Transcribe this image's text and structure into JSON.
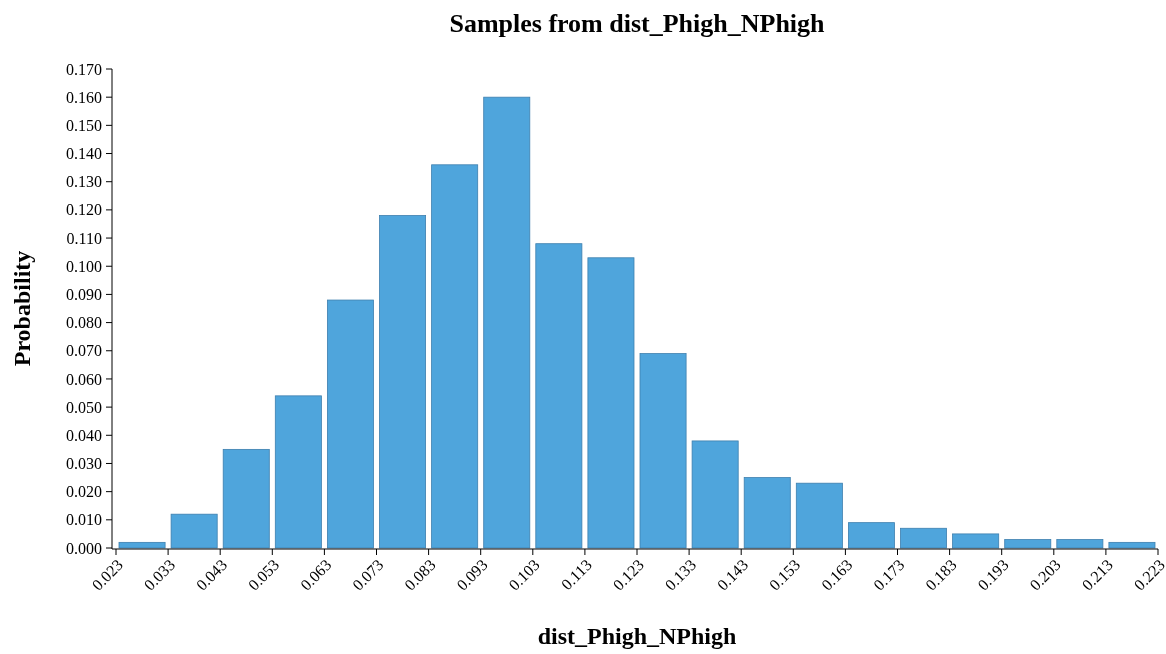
{
  "chart_data": {
    "type": "histogram",
    "title": "Samples from dist_Phigh_NPhigh",
    "xlabel": "dist_Phigh_NPhigh",
    "ylabel": "Probability",
    "color": "#4fa5dc",
    "bins": [
      0.023,
      0.033,
      0.043,
      0.053,
      0.063,
      0.073,
      0.083,
      0.093,
      0.103,
      0.113,
      0.123,
      0.133,
      0.143,
      0.153,
      0.163,
      0.173,
      0.183,
      0.193,
      0.203,
      0.213,
      0.223
    ],
    "values": [
      0.002,
      0.012,
      0.035,
      0.054,
      0.088,
      0.118,
      0.136,
      0.16,
      0.108,
      0.103,
      0.069,
      0.038,
      0.025,
      0.023,
      0.009,
      0.007,
      0.005,
      0.003,
      0.003,
      0.002
    ],
    "xlim": [
      0.023,
      0.223
    ],
    "xticks": [
      0.023,
      0.033,
      0.043,
      0.053,
      0.063,
      0.073,
      0.083,
      0.093,
      0.103,
      0.113,
      0.123,
      0.133,
      0.143,
      0.153,
      0.163,
      0.173,
      0.183,
      0.193,
      0.203,
      0.213,
      0.223
    ],
    "ylim": [
      0,
      0.17
    ],
    "yticks": [
      {
        "value": 0,
        "label": "0.000"
      },
      {
        "value": 0.01,
        "label": "0.010"
      },
      {
        "value": 0.02,
        "label": "0.020"
      },
      {
        "value": 0.03,
        "label": "0.030"
      },
      {
        "value": 0.04,
        "label": "0.040"
      },
      {
        "value": 0.05,
        "label": "0.050"
      },
      {
        "value": 0.06,
        "label": "0.060"
      },
      {
        "value": 0.07,
        "label": "0.070"
      },
      {
        "value": 0.08,
        "label": "0.080"
      },
      {
        "value": 0.09,
        "label": "0.090"
      },
      {
        "value": 0.1,
        "label": "0.100"
      },
      {
        "value": 0.11,
        "label": "0.110"
      },
      {
        "value": 0.12,
        "label": "0.120"
      },
      {
        "value": 0.13,
        "label": "0.130"
      },
      {
        "value": 0.14,
        "label": "0.140"
      },
      {
        "value": 0.15,
        "label": "0.150"
      },
      {
        "value": 0.16,
        "label": "0.160"
      },
      {
        "value": 0.17,
        "label": "0.170"
      }
    ],
    "grid": false
  }
}
